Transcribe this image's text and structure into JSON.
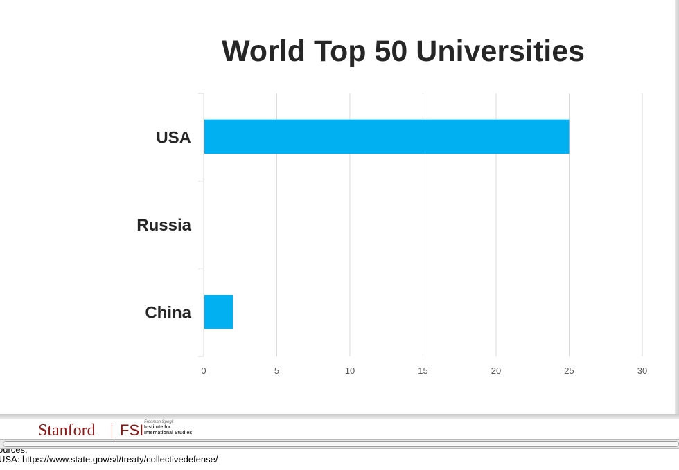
{
  "chart_data": {
    "type": "bar",
    "orientation": "horizontal",
    "title": "World Top 50 Universities",
    "categories": [
      "USA",
      "Russia",
      "China"
    ],
    "values": [
      25,
      0,
      2
    ],
    "xlim": [
      0,
      30
    ],
    "xticks": [
      "0",
      "5",
      "10",
      "15",
      "20",
      "25",
      "30"
    ],
    "xlabel": "",
    "ylabel": "",
    "grid": true,
    "legend": "none",
    "bar_color": "#00b0f0",
    "grid_color": "#d9d9d9"
  },
  "footer": {
    "logo_stanford": "Stanford",
    "logo_fsi": "FSI",
    "logo_inst_line1": "Freeman Spogli",
    "logo_inst_line2": "Institute for",
    "logo_inst_line3": "International Studies"
  },
  "notes": {
    "line1": "ources:",
    "line2": "USA: https://www.state.gov/s/l/treaty/collectivedefense/"
  }
}
